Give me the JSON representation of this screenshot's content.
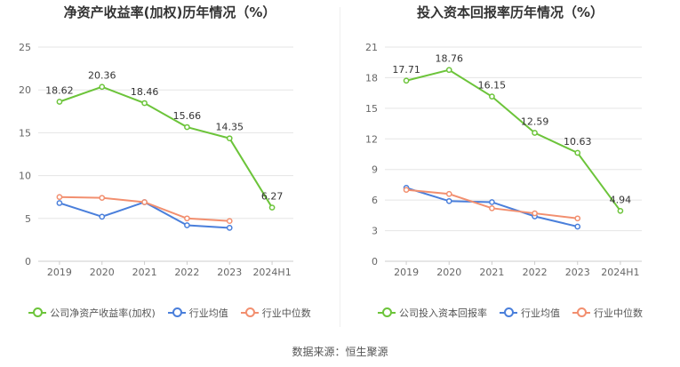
{
  "colors": {
    "company": "#6CC43A",
    "industry_avg": "#4A7FDB",
    "industry_median": "#F28F6F",
    "grid": "#e5e5e5",
    "tick": "#666666"
  },
  "legend_labels": {
    "industry_avg": "行业均值",
    "industry_median": "行业中位数"
  },
  "source": "数据来源：恒生聚源",
  "chart_data": [
    {
      "type": "line",
      "title": "净资产收益率(加权)历年情况（%）",
      "categories": [
        "2019",
        "2020",
        "2021",
        "2022",
        "2023",
        "2024H1"
      ],
      "ylim": [
        0,
        25
      ],
      "yticks": [
        "0",
        "5",
        "10",
        "15",
        "20",
        "25"
      ],
      "yticks_values": [
        0,
        5,
        10,
        15,
        20,
        25
      ],
      "grid": true,
      "legend_position": "bottom",
      "series": [
        {
          "name": "公司净资产收益率(加权)",
          "key": "company",
          "values": [
            18.62,
            20.36,
            18.46,
            15.66,
            14.35,
            6.27
          ],
          "labels": [
            "18.62",
            "20.36",
            "18.46",
            "15.66",
            "14.35",
            "6.27"
          ]
        },
        {
          "name": "行业均值",
          "key": "industry_avg",
          "values": [
            6.8,
            5.2,
            6.9,
            4.2,
            3.9,
            null
          ]
        },
        {
          "name": "行业中位数",
          "key": "industry_median",
          "values": [
            7.5,
            7.4,
            6.9,
            5.0,
            4.7,
            null
          ]
        }
      ]
    },
    {
      "type": "line",
      "title": "投入资本回报率历年情况（%）",
      "categories": [
        "2019",
        "2020",
        "2021",
        "2022",
        "2023",
        "2024H1"
      ],
      "ylim": [
        0,
        21
      ],
      "yticks": [
        "0",
        "3",
        "6",
        "9",
        "12",
        "15",
        "18",
        "21"
      ],
      "yticks_values": [
        0,
        3,
        6,
        9,
        12,
        15,
        18,
        21
      ],
      "grid": true,
      "legend_position": "bottom",
      "series": [
        {
          "name": "公司投入资本回报率",
          "key": "company",
          "values": [
            17.71,
            18.76,
            16.15,
            12.59,
            10.63,
            4.94
          ],
          "labels": [
            "17.71",
            "18.76",
            "16.15",
            "12.59",
            "10.63",
            "4.94"
          ]
        },
        {
          "name": "行业均值",
          "key": "industry_avg",
          "values": [
            7.2,
            5.9,
            5.8,
            4.4,
            3.4,
            null
          ]
        },
        {
          "name": "行业中位数",
          "key": "industry_median",
          "values": [
            7.0,
            6.6,
            5.2,
            4.7,
            4.2,
            null
          ]
        }
      ]
    }
  ]
}
